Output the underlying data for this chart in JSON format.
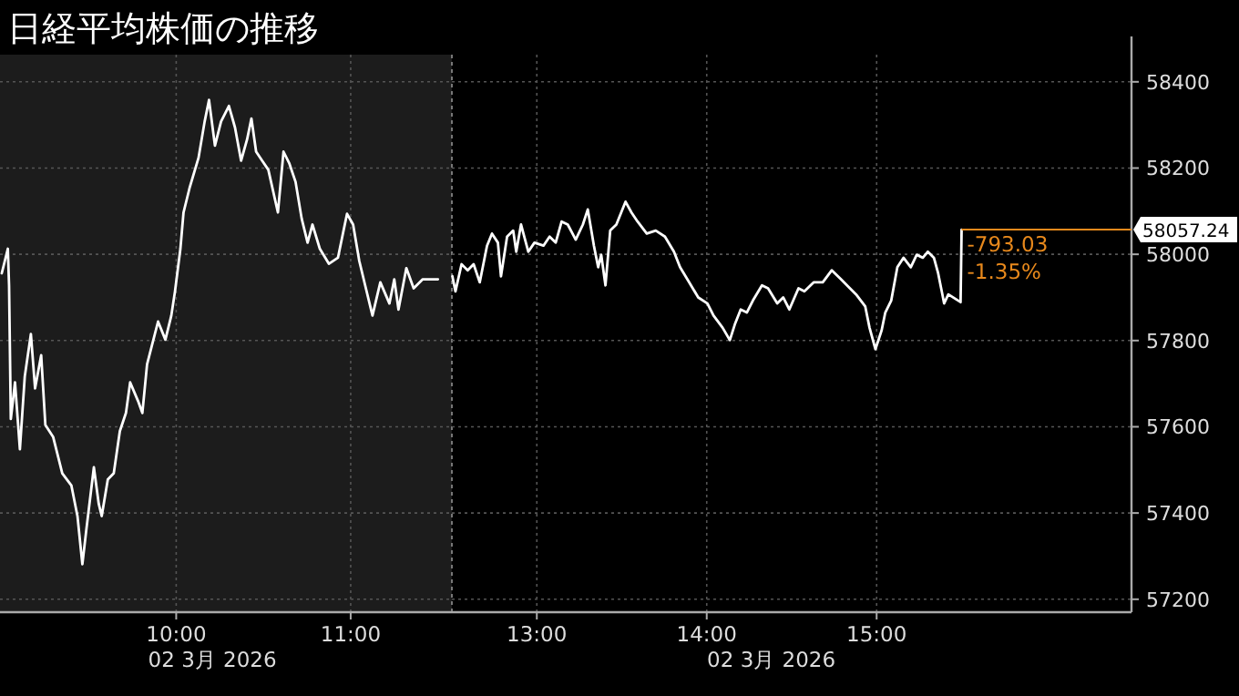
{
  "chart_data": [
    {
      "type": "line",
      "title": "日経平均株価の推移",
      "x": [
        9.0,
        9.035,
        9.042,
        9.052,
        9.076,
        9.104,
        9.132,
        9.167,
        9.191,
        9.226,
        9.25,
        9.295,
        9.347,
        9.399,
        9.434,
        9.462,
        9.486,
        9.528,
        9.556,
        9.573,
        9.608,
        9.642,
        9.677,
        9.712,
        9.736,
        9.781,
        9.806,
        9.833,
        9.896,
        9.938,
        9.972,
        9.993,
        10.024,
        10.042,
        10.076,
        10.128,
        10.163,
        10.188,
        10.222,
        10.257,
        10.302,
        10.337,
        10.372,
        10.406,
        10.431,
        10.458,
        10.493,
        10.528,
        10.583,
        10.615,
        10.649,
        10.684,
        10.719,
        10.753,
        10.781,
        10.823,
        10.875,
        10.927,
        10.979,
        11.014,
        11.049,
        11.083,
        11.125,
        11.17,
        11.222,
        11.25,
        11.274,
        11.319,
        11.361,
        11.413,
        11.5
      ],
      "series": [
        {
          "color": "#ffffff",
          "values": [
            57956,
            58013,
            57928,
            57618,
            57703,
            57548,
            57717,
            57815,
            57689,
            57766,
            57604,
            57576,
            57492,
            57464,
            57393,
            57281,
            57365,
            57506,
            57421,
            57393,
            57478,
            57492,
            57590,
            57632,
            57703,
            57660,
            57632,
            57745,
            57844,
            57802,
            57858,
            57914,
            58013,
            58097,
            58153,
            58224,
            58308,
            58358,
            58252,
            58308,
            58344,
            58294,
            58217,
            58266,
            58315,
            58238,
            58217,
            58196,
            58097,
            58238,
            58210,
            58168,
            58083,
            58027,
            58069,
            58013,
            57978,
            57992,
            58094,
            58069,
            57985,
            57928,
            57858,
            57935,
            57886,
            57942,
            57872,
            57968,
            57921,
            57942,
            57942
          ]
        }
      ],
      "xlim": [
        8.99,
        11.58
      ],
      "xticks": [
        {
          "value": 10,
          "label": "10:00"
        },
        {
          "value": 11,
          "label": "11:00"
        }
      ],
      "ylim": [
        57170,
        58463
      ],
      "yticks": [
        57200,
        57400,
        57600,
        57800,
        58000,
        58200,
        58400
      ],
      "tick_labels": "x",
      "grid": true,
      "line_style": "solid",
      "bands": [
        {
          "axis": "x",
          "from": 8.99,
          "to": 11.58,
          "color": "#1c1c1c"
        }
      ],
      "annotations": [
        "02 3月 2026"
      ]
    },
    {
      "type": "line",
      "x": [
        12.503,
        12.521,
        12.557,
        12.593,
        12.628,
        12.664,
        12.707,
        12.736,
        12.771,
        12.789,
        12.825,
        12.861,
        12.879,
        12.907,
        12.95,
        12.986,
        13.039,
        13.075,
        13.111,
        13.146,
        13.182,
        13.229,
        13.271,
        13.3,
        13.336,
        13.361,
        13.379,
        13.404,
        13.432,
        13.468,
        13.522,
        13.557,
        13.593,
        13.647,
        13.7,
        13.754,
        13.807,
        13.843,
        13.897,
        13.95,
        14.004,
        14.04,
        14.093,
        14.136,
        14.165,
        14.2,
        14.236,
        14.272,
        14.325,
        14.361,
        14.415,
        14.45,
        14.486,
        14.54,
        14.575,
        14.629,
        14.683,
        14.736,
        14.79,
        14.843,
        14.879,
        14.933,
        14.958,
        14.993,
        15.029,
        15.051,
        15.086,
        15.122,
        15.158,
        15.201,
        15.236,
        15.272,
        15.301,
        15.337,
        15.362,
        15.387,
        15.397,
        15.422,
        15.494,
        15.5
      ],
      "series": [
        {
          "color": "#ffffff",
          "values": [
            57949,
            57914,
            57977,
            57963,
            57977,
            57935,
            58020,
            58048,
            58027,
            57949,
            58041,
            58055,
            58006,
            58069,
            58006,
            58027,
            58020,
            58041,
            58027,
            58076,
            58069,
            58034,
            58069,
            58104,
            58020,
            57970,
            57999,
            57928,
            58055,
            58069,
            58122,
            58097,
            58076,
            58048,
            58055,
            58041,
            58006,
            57970,
            57935,
            57900,
            57886,
            57858,
            57830,
            57801,
            57837,
            57872,
            57865,
            57893,
            57928,
            57921,
            57886,
            57900,
            57872,
            57921,
            57914,
            57935,
            57935,
            57963,
            57942,
            57921,
            57907,
            57879,
            57830,
            57780,
            57823,
            57865,
            57893,
            57970,
            57992,
            57970,
            57999,
            57992,
            58006,
            57992,
            57956,
            57907,
            57886,
            57907,
            57889,
            58057.24
          ]
        }
      ],
      "xlim": [
        12.5,
        16.5
      ],
      "xticks": [
        {
          "value": 13,
          "label": "13:00"
        },
        {
          "value": 14,
          "label": "14:00"
        },
        {
          "value": 15,
          "label": "15:00"
        }
      ],
      "ylim": [
        57170,
        58463
      ],
      "yticks": [
        57200,
        57400,
        57600,
        57800,
        58000,
        58200,
        58400
      ],
      "grid": true,
      "line_style": "solid",
      "ref_lines": [
        {
          "axis": "y",
          "value": 58057.24,
          "label": "58057.24",
          "color": "#e8891c"
        }
      ],
      "annotations": [
        "02 3月 2026",
        {
          "text": "-793.03",
          "x": 15.5,
          "y": 58057.24
        },
        {
          "text": "-1.35%",
          "x": 15.5,
          "y": 58057.24
        }
      ]
    }
  ]
}
